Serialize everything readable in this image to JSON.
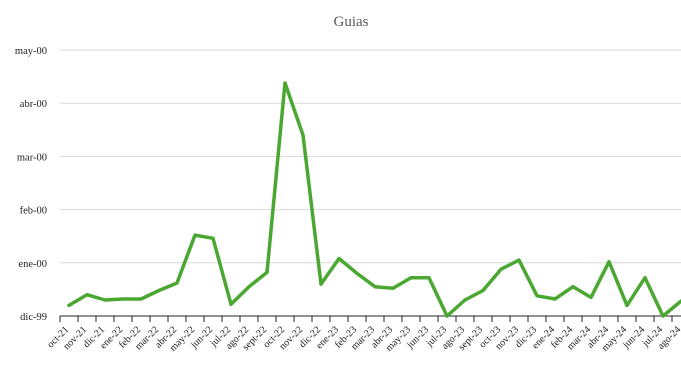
{
  "chart_data": {
    "type": "line",
    "title": "Guias",
    "xlabel": "",
    "ylabel": "",
    "y_ticks": [
      "dic-99",
      "ene-00",
      "feb-00",
      "mar-00",
      "abr-00",
      "may-00"
    ],
    "ylim": [
      0,
      5
    ],
    "grid": true,
    "legend": "none",
    "color": "#4aa832",
    "categories": [
      "oct-21",
      "nov-21",
      "dic-21",
      "ene-22",
      "feb-22",
      "mar-22",
      "abr-22",
      "may-22",
      "jun-22",
      "jul-22",
      "ago-22",
      "sept-22",
      "oct-22",
      "nov-22",
      "dic-22",
      "ene-23",
      "feb-23",
      "mar-23",
      "abr-23",
      "may-23",
      "jun-23",
      "jul-23",
      "ago-23",
      "sept-23",
      "oct-23",
      "nov-23",
      "dic-23",
      "ene-24",
      "feb-24",
      "mar-24",
      "abr-24",
      "may-24",
      "jun-24",
      "jul-24",
      "ago-24"
    ],
    "series": [
      {
        "values": [
          0.2,
          0.4,
          0.3,
          0.32,
          0.32,
          0.48,
          0.62,
          1.52,
          1.46,
          0.22,
          0.55,
          0.82,
          4.38,
          3.4,
          0.6,
          1.08,
          0.8,
          0.55,
          0.52,
          0.72,
          0.72,
          0.0,
          0.3,
          0.48,
          0.88,
          1.05,
          0.38,
          0.32,
          0.55,
          0.35,
          1.02,
          0.2,
          0.72,
          0.0,
          0.28
        ]
      }
    ]
  }
}
